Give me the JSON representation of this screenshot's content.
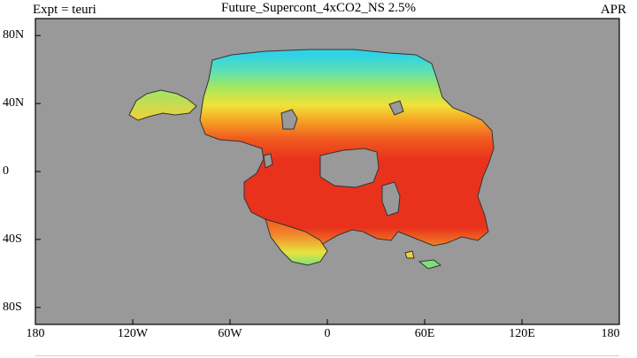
{
  "header": {
    "experiment": "Expt = teuri",
    "title": "Future_Supercont_4xCO2_NS 2.5%",
    "month": "APR"
  },
  "map": {
    "projection": "equirectangular",
    "lon_range": [
      -180,
      180
    ],
    "lat_range": [
      -90,
      90
    ],
    "ocean_color": "#999999",
    "land_outline_color": "#333333",
    "colormap": [
      "#2fd3e8",
      "#7fe07a",
      "#d9ec4a",
      "#f6c21f",
      "#f47a1c",
      "#e8321c"
    ]
  },
  "axes": {
    "y_ticks": [
      {
        "lat": 80,
        "label": "80N"
      },
      {
        "lat": 40,
        "label": "40N"
      },
      {
        "lat": 0,
        "label": "0"
      },
      {
        "lat": -40,
        "label": "40S"
      },
      {
        "lat": -80,
        "label": "80S"
      }
    ],
    "x_ticks": [
      {
        "lon": -180,
        "label": "180"
      },
      {
        "lon": -120,
        "label": "120W"
      },
      {
        "lon": -60,
        "label": "60W"
      },
      {
        "lon": 0,
        "label": "0"
      },
      {
        "lon": 60,
        "label": "60E"
      },
      {
        "lon": 120,
        "label": "120E"
      },
      {
        "lon": 180,
        "label": "180"
      }
    ]
  }
}
